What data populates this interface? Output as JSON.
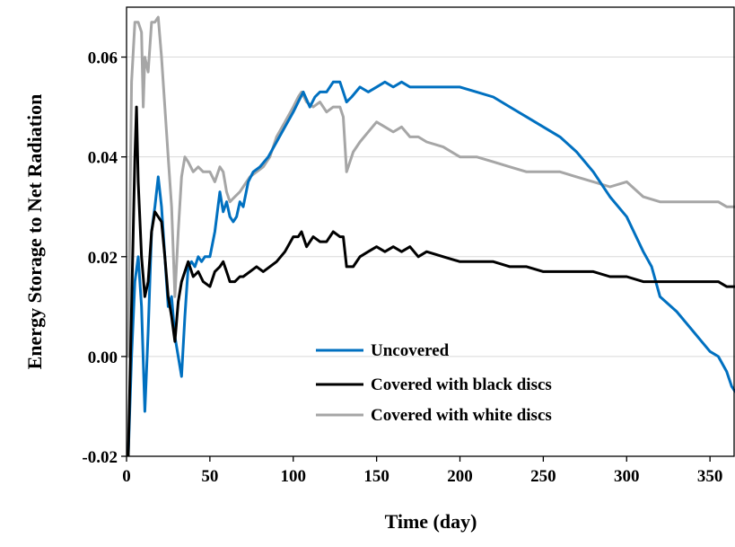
{
  "chart_data": {
    "type": "line",
    "title": "",
    "xlabel": "Time (day)",
    "ylabel": "Energy Storage to Net Radiation",
    "xlim": [
      0,
      365
    ],
    "ylim": [
      -0.02,
      0.07
    ],
    "xticks": [
      0,
      50,
      100,
      150,
      200,
      250,
      300,
      350
    ],
    "xtick_labels": [
      "0",
      "50",
      "100",
      "150",
      "200",
      "250",
      "300",
      "350"
    ],
    "yticks": [
      -0.02,
      0.0,
      0.02,
      0.04,
      0.06
    ],
    "ytick_labels": [
      "-0.02",
      "0.00",
      "0.02",
      "0.04",
      "0.06"
    ],
    "grid": "horizontal",
    "legend_position": "bottom-center",
    "series": [
      {
        "name": "Uncovered",
        "color": "#0070c0",
        "x": [
          1,
          3,
          5,
          7,
          9,
          11,
          13,
          15,
          17,
          19,
          21,
          23,
          25,
          27,
          29,
          31,
          33,
          35,
          37,
          39,
          41,
          43,
          45,
          47,
          50,
          53,
          56,
          58,
          60,
          62,
          64,
          66,
          68,
          70,
          73,
          76,
          80,
          85,
          90,
          95,
          100,
          103,
          106,
          110,
          113,
          116,
          120,
          124,
          128,
          130,
          132,
          135,
          140,
          145,
          150,
          155,
          160,
          165,
          170,
          175,
          180,
          190,
          200,
          210,
          220,
          230,
          240,
          250,
          260,
          270,
          280,
          290,
          300,
          310,
          315,
          320,
          330,
          340,
          345,
          350,
          355,
          360,
          363,
          365
        ],
        "y": [
          -0.02,
          0.0,
          0.015,
          0.02,
          0.01,
          -0.011,
          0.005,
          0.025,
          0.03,
          0.036,
          0.03,
          0.02,
          0.01,
          0.012,
          0.004,
          0.0,
          -0.004,
          0.008,
          0.018,
          0.019,
          0.018,
          0.02,
          0.019,
          0.02,
          0.02,
          0.025,
          0.033,
          0.029,
          0.031,
          0.028,
          0.027,
          0.028,
          0.031,
          0.03,
          0.035,
          0.037,
          0.038,
          0.04,
          0.043,
          0.046,
          0.049,
          0.051,
          0.053,
          0.05,
          0.052,
          0.053,
          0.053,
          0.055,
          0.055,
          0.053,
          0.051,
          0.052,
          0.054,
          0.053,
          0.054,
          0.055,
          0.054,
          0.055,
          0.054,
          0.054,
          0.054,
          0.054,
          0.054,
          0.053,
          0.052,
          0.05,
          0.048,
          0.046,
          0.044,
          0.041,
          0.037,
          0.032,
          0.028,
          0.021,
          0.018,
          0.012,
          0.009,
          0.005,
          0.003,
          0.001,
          0.0,
          -0.003,
          -0.006,
          -0.007
        ]
      },
      {
        "name": "Covered with black discs",
        "color": "#000000",
        "x": [
          1,
          3,
          5,
          6,
          7,
          9,
          11,
          13,
          15,
          17,
          19,
          21,
          23,
          25,
          27,
          29,
          31,
          33,
          35,
          37,
          40,
          43,
          46,
          50,
          53,
          56,
          58,
          60,
          62,
          65,
          68,
          70,
          74,
          78,
          82,
          86,
          90,
          95,
          100,
          103,
          105,
          108,
          112,
          116,
          120,
          124,
          128,
          130,
          132,
          136,
          140,
          145,
          150,
          155,
          160,
          165,
          170,
          175,
          180,
          190,
          200,
          210,
          220,
          230,
          240,
          250,
          260,
          270,
          280,
          290,
          300,
          310,
          320,
          330,
          340,
          350,
          355,
          360,
          365
        ],
        "y": [
          -0.02,
          0.01,
          0.04,
          0.05,
          0.035,
          0.02,
          0.012,
          0.015,
          0.025,
          0.029,
          0.028,
          0.027,
          0.02,
          0.012,
          0.008,
          0.003,
          0.011,
          0.015,
          0.017,
          0.019,
          0.016,
          0.017,
          0.015,
          0.014,
          0.017,
          0.018,
          0.019,
          0.017,
          0.015,
          0.015,
          0.016,
          0.016,
          0.017,
          0.018,
          0.017,
          0.018,
          0.019,
          0.021,
          0.024,
          0.024,
          0.025,
          0.022,
          0.024,
          0.023,
          0.023,
          0.025,
          0.024,
          0.024,
          0.018,
          0.018,
          0.02,
          0.021,
          0.022,
          0.021,
          0.022,
          0.021,
          0.022,
          0.02,
          0.021,
          0.02,
          0.019,
          0.019,
          0.019,
          0.018,
          0.018,
          0.017,
          0.017,
          0.017,
          0.017,
          0.016,
          0.016,
          0.015,
          0.015,
          0.015,
          0.015,
          0.015,
          0.015,
          0.014,
          0.014
        ]
      },
      {
        "name": "Covered with white discs",
        "color": "#a6a6a6",
        "x": [
          1,
          3,
          5,
          7,
          9,
          10,
          11,
          13,
          15,
          17,
          19,
          21,
          23,
          25,
          27,
          29,
          31,
          33,
          35,
          37,
          40,
          43,
          46,
          50,
          53,
          56,
          58,
          60,
          62,
          65,
          68,
          70,
          74,
          78,
          82,
          86,
          90,
          95,
          100,
          103,
          105,
          108,
          112,
          116,
          120,
          124,
          128,
          130,
          132,
          136,
          140,
          145,
          150,
          155,
          160,
          165,
          170,
          175,
          180,
          190,
          200,
          210,
          220,
          230,
          240,
          250,
          260,
          270,
          280,
          290,
          300,
          310,
          320,
          330,
          340,
          350,
          355,
          360,
          365
        ],
        "y": [
          0.0,
          0.055,
          0.067,
          0.067,
          0.065,
          0.05,
          0.06,
          0.057,
          0.067,
          0.067,
          0.068,
          0.06,
          0.05,
          0.04,
          0.03,
          0.012,
          0.025,
          0.036,
          0.04,
          0.039,
          0.037,
          0.038,
          0.037,
          0.037,
          0.035,
          0.038,
          0.037,
          0.033,
          0.031,
          0.032,
          0.033,
          0.034,
          0.036,
          0.037,
          0.038,
          0.04,
          0.044,
          0.047,
          0.05,
          0.052,
          0.053,
          0.051,
          0.05,
          0.051,
          0.049,
          0.05,
          0.05,
          0.048,
          0.037,
          0.041,
          0.043,
          0.045,
          0.047,
          0.046,
          0.045,
          0.046,
          0.044,
          0.044,
          0.043,
          0.042,
          0.04,
          0.04,
          0.039,
          0.038,
          0.037,
          0.037,
          0.037,
          0.036,
          0.035,
          0.034,
          0.035,
          0.032,
          0.031,
          0.031,
          0.031,
          0.031,
          0.031,
          0.03,
          0.03
        ]
      }
    ]
  }
}
